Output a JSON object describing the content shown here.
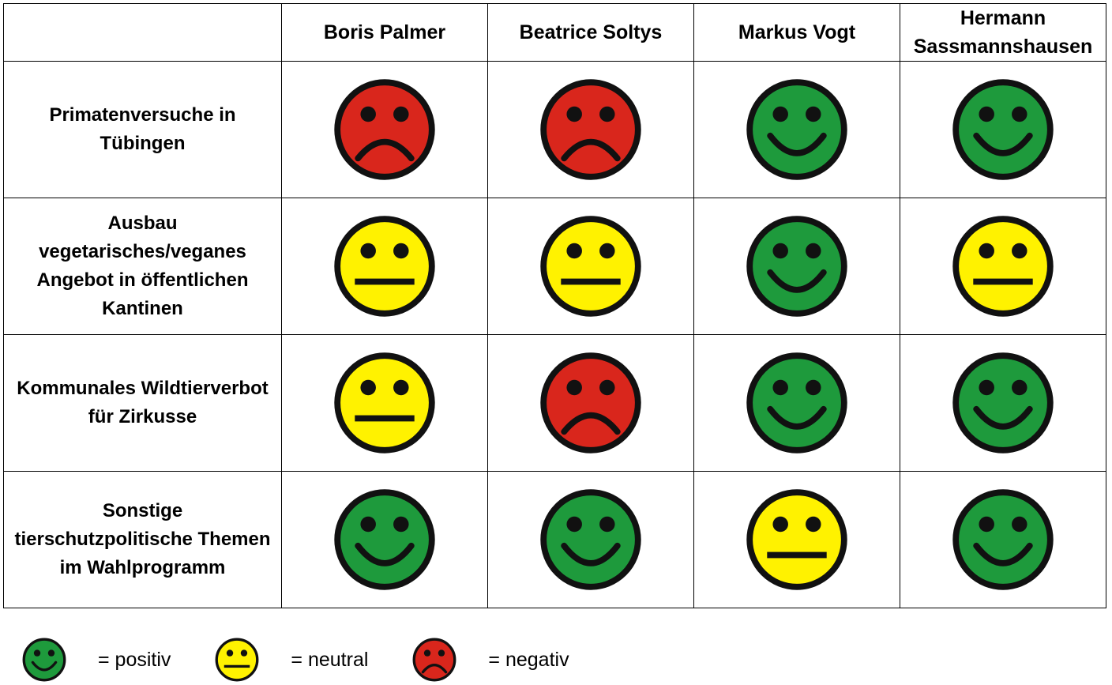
{
  "candidates": [
    "Boris Palmer",
    "Beatrice Soltys",
    "Markus Vogt",
    "Hermann Sassmannshausen"
  ],
  "topics": [
    "Primatenversuche in Tübingen",
    "Ausbau vegetarisches/veganes Angebot in öffentlichen Kantinen",
    "Kommunales Wildtierverbot für Zirkusse",
    "Sonstige tierschutzpolitische Themen im Wahlprogramm"
  ],
  "ratings": [
    [
      "negative",
      "negative",
      "positive",
      "positive"
    ],
    [
      "neutral",
      "neutral",
      "positive",
      "neutral"
    ],
    [
      "neutral",
      "negative",
      "positive",
      "positive"
    ],
    [
      "positive",
      "positive",
      "neutral",
      "positive"
    ]
  ],
  "legend": {
    "positive": "= positiv",
    "neutral": "= neutral",
    "negative": "= negativ"
  },
  "face_colors": {
    "positive": "#1e9a3c",
    "neutral": "#fff200",
    "negative": "#d9261c"
  },
  "icons": {
    "positive": "smiling-face-icon",
    "neutral": "neutral-face-icon",
    "negative": "frowning-face-icon"
  }
}
